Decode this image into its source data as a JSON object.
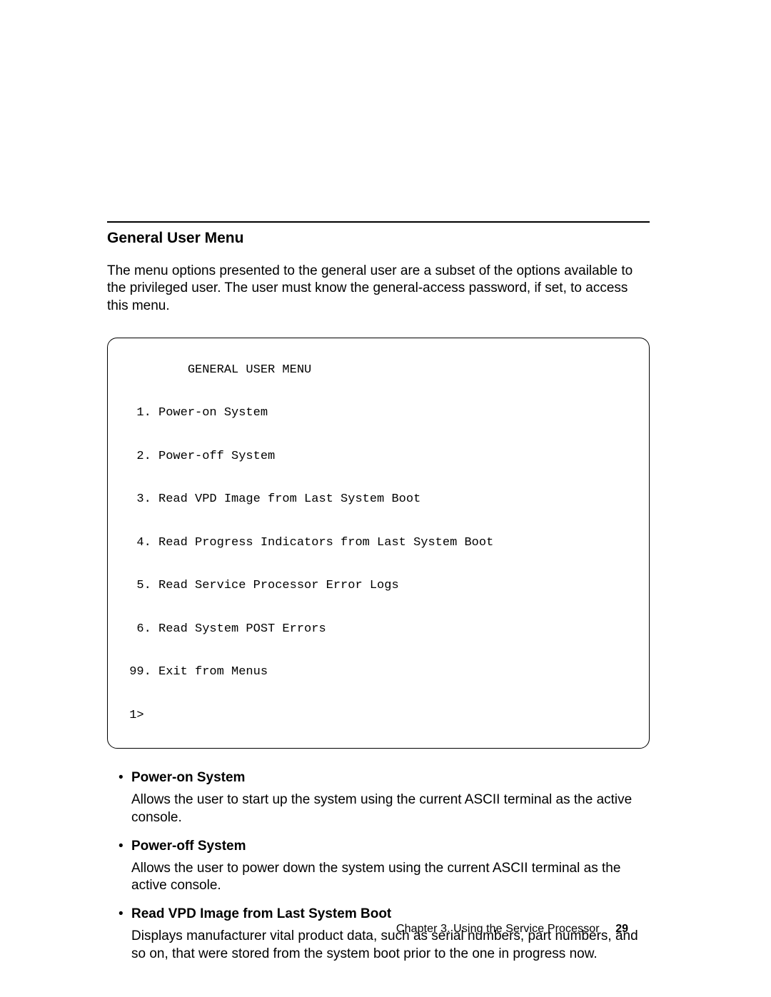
{
  "heading": "General User Menu",
  "intro": "The menu options presented to the general user are a subset of the options available to the privileged user.  The user must know the general-access password, if set, to access this menu.",
  "terminal": "         GENERAL USER MENU\n\n  1. Power-on System\n\n  2. Power-off System\n\n  3. Read VPD Image from Last System Boot\n\n  4. Read Progress Indicators from Last System Boot\n\n  5. Read Service Processor Error Logs\n\n  6. Read System POST Errors\n\n 99. Exit from Menus\n\n 1>",
  "bullets": [
    {
      "title": "Power-on System",
      "desc": "Allows the user to start up the system using the current ASCII terminal as the active console."
    },
    {
      "title": "Power-off System",
      "desc": "Allows the user to power down the system using the current ASCII terminal as the active console."
    },
    {
      "title": "Read VPD Image from Last System Boot",
      "desc": "Displays manufacturer vital product data, such as serial numbers, part numbers, and so on, that were stored from the system boot prior to the one in progress now."
    }
  ],
  "footer": {
    "chapter": "Chapter 3.  Using the Service Processor",
    "page": "29"
  }
}
